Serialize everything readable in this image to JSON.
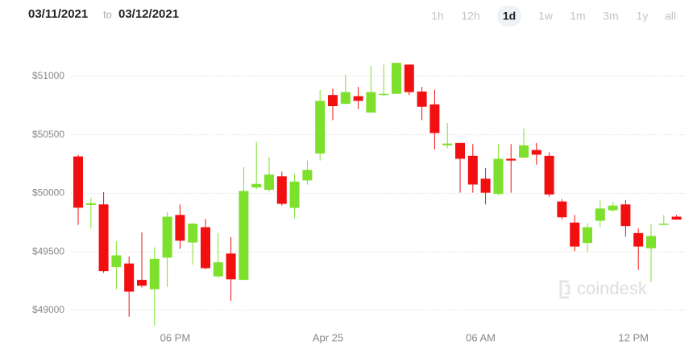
{
  "controls": {
    "date_from": "03/11/2021",
    "separator": "to",
    "date_to": "03/12/2021",
    "ranges": [
      "1h",
      "12h",
      "1d",
      "1w",
      "1m",
      "3m",
      "1y",
      "all"
    ],
    "selected_range": 2
  },
  "watermark": "coindesk",
  "chart_data": {
    "type": "candlestick",
    "categories": [
      null,
      null,
      null,
      null,
      null,
      null,
      null,
      null,
      "06 PM",
      null,
      null,
      null,
      null,
      null,
      null,
      null,
      null,
      null,
      null,
      null,
      "Apr 25",
      null,
      null,
      null,
      null,
      null,
      null,
      null,
      null,
      null,
      null,
      null,
      "06 AM",
      null,
      null,
      null,
      null,
      null,
      null,
      null,
      null,
      null,
      null,
      null,
      "12 PM",
      null,
      null,
      null
    ],
    "open": [
      50315,
      49900,
      49905,
      49370,
      49400,
      49260,
      49180,
      49450,
      49815,
      49580,
      49710,
      49290,
      49485,
      49260,
      50050,
      50030,
      50145,
      49875,
      50110,
      50340,
      50840,
      50765,
      50830,
      50690,
      50840,
      50850,
      51100,
      50870,
      50760,
      50410,
      50430,
      50320,
      50125,
      49995,
      50295,
      50305,
      50370,
      50320,
      49930,
      49750,
      49575,
      49765,
      49855,
      49905,
      49660,
      49530,
      49735,
      49800
    ],
    "high": [
      50330,
      49960,
      50010,
      49590,
      49460,
      49665,
      49540,
      49840,
      49905,
      49745,
      49780,
      49660,
      49625,
      50225,
      50440,
      50310,
      50185,
      50165,
      50280,
      50885,
      50895,
      51015,
      50910,
      51090,
      51100,
      51115,
      51100,
      50910,
      50885,
      50600,
      50430,
      50420,
      50215,
      50420,
      50420,
      50555,
      50430,
      50350,
      49950,
      49815,
      49745,
      49940,
      49925,
      49940,
      49700,
      49735,
      49815,
      49815
    ],
    "low": [
      49730,
      49700,
      49320,
      49180,
      48945,
      49195,
      48870,
      49200,
      49525,
      49390,
      49350,
      49275,
      49080,
      49260,
      50035,
      50015,
      49895,
      49785,
      50075,
      50280,
      50625,
      50760,
      50720,
      50690,
      50830,
      50850,
      50840,
      50625,
      50375,
      50385,
      50005,
      50005,
      49905,
      49980,
      50005,
      50300,
      50245,
      49970,
      49775,
      49505,
      49495,
      49710,
      49840,
      49630,
      49345,
      49240,
      49735,
      49775
    ],
    "close": [
      49877,
      49915,
      49335,
      49470,
      49160,
      49210,
      49440,
      49800,
      49595,
      49740,
      49360,
      49410,
      49265,
      50020,
      50080,
      50160,
      49910,
      50100,
      50200,
      50790,
      50745,
      50865,
      50790,
      50865,
      50850,
      51115,
      50865,
      50740,
      50515,
      50425,
      50295,
      50075,
      50005,
      50295,
      50280,
      50410,
      50330,
      49990,
      49795,
      49545,
      49710,
      49870,
      49895,
      49720,
      49545,
      49635,
      49740,
      49775
    ],
    "up_color": "#7de02c",
    "down_color": "#f20f0f",
    "ylim": [
      48800,
      51200
    ],
    "yticks": [
      {
        "value": 49000,
        "label": "$49000"
      },
      {
        "value": 49500,
        "label": "$49500"
      },
      {
        "value": 50000,
        "label": "$50000"
      },
      {
        "value": 50500,
        "label": "$50500"
      },
      {
        "value": 51000,
        "label": "$51000"
      }
    ],
    "grid": true
  }
}
